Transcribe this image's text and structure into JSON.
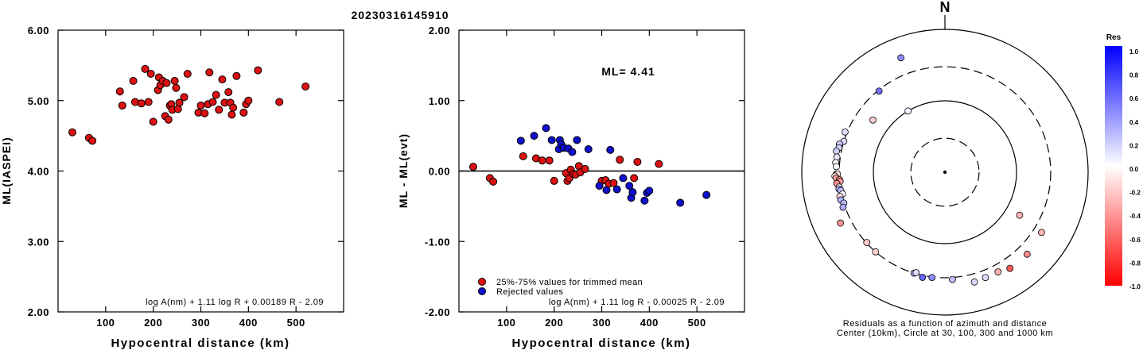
{
  "page_title": "20230316145910",
  "colors": {
    "accepted": "#dd1111",
    "rejected": "#1010cc",
    "marker_edge": "#000000"
  },
  "chart_data": [
    {
      "type": "scatter",
      "xlabel": "Hypocentral distance (km)",
      "ylabel": "ML(IASPEI)",
      "xlim": [
        0,
        600
      ],
      "ylim": [
        2.0,
        6.0
      ],
      "yticks": [
        "2.00",
        "3.00",
        "4.00",
        "5.00",
        "6.00"
      ],
      "xticks": [
        "100",
        "200",
        "300",
        "400",
        "500"
      ],
      "formula": "log A(nm) + 1.11 log R + 0.00189 R - 2.09",
      "series": [
        {
          "color": "#dd1111",
          "points": [
            [
              30,
              4.55
            ],
            [
              65,
              4.47
            ],
            [
              72,
              4.43
            ],
            [
              130,
              5.13
            ],
            [
              135,
              4.93
            ],
            [
              158,
              5.28
            ],
            [
              162,
              4.98
            ],
            [
              175,
              4.96
            ],
            [
              183,
              5.45
            ],
            [
              190,
              4.98
            ],
            [
              200,
              4.7
            ],
            [
              195,
              5.38
            ],
            [
              210,
              5.15
            ],
            [
              212,
              5.33
            ],
            [
              215,
              5.22
            ],
            [
              220,
              5.28
            ],
            [
              225,
              4.78
            ],
            [
              228,
              5.25
            ],
            [
              232,
              4.73
            ],
            [
              235,
              4.93
            ],
            [
              238,
              4.95
            ],
            [
              240,
              4.87
            ],
            [
              245,
              5.28
            ],
            [
              248,
              5.18
            ],
            [
              252,
              4.88
            ],
            [
              255,
              4.97
            ],
            [
              265,
              5.05
            ],
            [
              272,
              5.38
            ],
            [
              295,
              4.83
            ],
            [
              300,
              4.93
            ],
            [
              308,
              4.82
            ],
            [
              315,
              4.95
            ],
            [
              318,
              5.4
            ],
            [
              325,
              4.98
            ],
            [
              332,
              5.08
            ],
            [
              338,
              4.87
            ],
            [
              345,
              5.3
            ],
            [
              350,
              4.97
            ],
            [
              358,
              5.12
            ],
            [
              362,
              4.97
            ],
            [
              365,
              4.8
            ],
            [
              368,
              4.9
            ],
            [
              375,
              5.35
            ],
            [
              390,
              4.83
            ],
            [
              395,
              4.95
            ],
            [
              400,
              5.0
            ],
            [
              420,
              5.43
            ],
            [
              465,
              4.98
            ],
            [
              520,
              5.2
            ]
          ]
        }
      ]
    },
    {
      "type": "scatter",
      "xlabel": "Hypocentral distance (km)",
      "ylabel": "ML - ML(evt)",
      "xlim": [
        0,
        600
      ],
      "ylim": [
        -2.0,
        2.0
      ],
      "yticks": [
        "-2.00",
        "-1.00",
        "0.00",
        "1.00",
        "2.00"
      ],
      "xticks": [
        "100",
        "200",
        "300",
        "400",
        "500"
      ],
      "annotation": "ML= 4.41",
      "formula": "log A(nm) + 1.11 log R - 0.00025 R - 2.09",
      "legend": [
        "25%-75% values for trimmed mean",
        "Rejected values"
      ],
      "legend_position": "bottom-left",
      "series": [
        {
          "name": "25%-75% values for trimmed mean",
          "color": "#dd1111",
          "points": [
            [
              30,
              0.06
            ],
            [
              65,
              -0.1
            ],
            [
              72,
              -0.15
            ],
            [
              135,
              0.21
            ],
            [
              162,
              0.18
            ],
            [
              175,
              0.15
            ],
            [
              190,
              0.15
            ],
            [
              200,
              -0.14
            ],
            [
              225,
              -0.03
            ],
            [
              228,
              -0.14
            ],
            [
              232,
              -0.1
            ],
            [
              235,
              0.02
            ],
            [
              240,
              -0.04
            ],
            [
              245,
              -0.05
            ],
            [
              252,
              0.07
            ],
            [
              255,
              -0.02
            ],
            [
              265,
              0.03
            ],
            [
              300,
              -0.14
            ],
            [
              308,
              -0.13
            ],
            [
              315,
              -0.18
            ],
            [
              325,
              -0.17
            ],
            [
              338,
              0.16
            ],
            [
              368,
              -0.1
            ],
            [
              375,
              0.13
            ],
            [
              420,
              0.1
            ]
          ]
        },
        {
          "name": "Rejected values",
          "color": "#1010cc",
          "points": [
            [
              130,
              0.43
            ],
            [
              158,
              0.5
            ],
            [
              183,
              0.61
            ],
            [
              195,
              0.44
            ],
            [
              210,
              0.31
            ],
            [
              212,
              0.44
            ],
            [
              215,
              0.38
            ],
            [
              220,
              0.33
            ],
            [
              230,
              0.32
            ],
            [
              238,
              0.27
            ],
            [
              248,
              0.44
            ],
            [
              272,
              0.31
            ],
            [
              295,
              -0.21
            ],
            [
              310,
              -0.27
            ],
            [
              318,
              0.3
            ],
            [
              332,
              -0.26
            ],
            [
              345,
              -0.1
            ],
            [
              358,
              -0.21
            ],
            [
              362,
              -0.38
            ],
            [
              365,
              -0.3
            ],
            [
              390,
              -0.42
            ],
            [
              395,
              -0.31
            ],
            [
              400,
              -0.28
            ],
            [
              465,
              -0.45
            ],
            [
              520,
              -0.34
            ]
          ]
        }
      ]
    }
  ],
  "polar_plot": {
    "north_label": "N",
    "caption_line1": "Residuals as a function of azimuth and distance",
    "caption_line2": "Center (10km), Circle at 30, 100, 300 and 1000 km",
    "circles_km": [
      30,
      100,
      300,
      1000
    ],
    "circle_styles": [
      "dashed",
      "solid",
      "dashed",
      "solid"
    ],
    "points": [
      {
        "azimuth": 321,
        "distance_km": 290,
        "residual": 0.55
      },
      {
        "azimuth": 292,
        "distance_km": 320,
        "residual": 0.13
      },
      {
        "azimuth": 287,
        "distance_km": 300,
        "residual": 0.15
      },
      {
        "azimuth": 285,
        "distance_km": 335,
        "residual": 0.21
      },
      {
        "azimuth": 283,
        "distance_km": 330,
        "residual": 0.16
      },
      {
        "azimuth": 281,
        "distance_km": 350,
        "residual": 0.18
      },
      {
        "azimuth": 278,
        "distance_km": 335,
        "residual": 0.1
      },
      {
        "azimuth": 275,
        "distance_km": 340,
        "residual": 0.0
      },
      {
        "azimuth": 273,
        "distance_km": 330,
        "residual": 0.02
      },
      {
        "azimuth": 269,
        "distance_km": 330,
        "residual": 0.15
      },
      {
        "azimuth": 269,
        "distance_km": 318,
        "residual": -0.1
      },
      {
        "azimuth": 268,
        "distance_km": 345,
        "residual": -0.04
      },
      {
        "azimuth": 267,
        "distance_km": 333,
        "residual": -0.38
      },
      {
        "azimuth": 266,
        "distance_km": 300,
        "residual": -0.5
      },
      {
        "azimuth": 265,
        "distance_km": 295,
        "residual": -0.4
      },
      {
        "azimuth": 264,
        "distance_km": 330,
        "residual": -0.45
      },
      {
        "azimuth": 262,
        "distance_km": 310,
        "residual": -0.05
      },
      {
        "azimuth": 261,
        "distance_km": 315,
        "residual": 0.3
      },
      {
        "azimuth": 260,
        "distance_km": 300,
        "residual": 0.25
      },
      {
        "azimuth": 258,
        "distance_km": 290,
        "residual": 0.02
      },
      {
        "azimuth": 257,
        "distance_km": 320,
        "residual": -0.14
      },
      {
        "azimuth": 255,
        "distance_km": 320,
        "residual": 0.3
      },
      {
        "azimuth": 253,
        "distance_km": 300,
        "residual": 0.28
      },
      {
        "azimuth": 251,
        "distance_km": 320,
        "residual": 0.32
      },
      {
        "azimuth": 244,
        "distance_km": 420,
        "residual": -0.42
      },
      {
        "azimuth": 228,
        "distance_km": 295,
        "residual": -0.21
      },
      {
        "azimuth": 221,
        "distance_km": 300,
        "residual": -0.18
      },
      {
        "azimuth": 197,
        "distance_km": 300,
        "residual": 0.3
      },
      {
        "azimuth": 196,
        "distance_km": 290,
        "residual": 0.14
      },
      {
        "azimuth": 192,
        "distance_km": 320,
        "residual": 0.6
      },
      {
        "azimuth": 187,
        "distance_km": 305,
        "residual": 0.45
      },
      {
        "azimuth": 176,
        "distance_km": 320,
        "residual": 0.26
      },
      {
        "azimuth": 165,
        "distance_km": 390,
        "residual": 0.15
      },
      {
        "azimuth": 159,
        "distance_km": 380,
        "residual": 0.15
      },
      {
        "azimuth": 152,
        "distance_km": 380,
        "residual": -0.3
      },
      {
        "azimuth": 146,
        "distance_km": 420,
        "residual": -0.65
      },
      {
        "azimuth": 135,
        "distance_km": 420,
        "residual": -0.45
      },
      {
        "azimuth": 122,
        "distance_km": 390,
        "residual": -0.3
      },
      {
        "azimuth": 120,
        "distance_km": 160,
        "residual": -0.3
      },
      {
        "azimuth": 329,
        "distance_km": 100,
        "residual": 0.05
      },
      {
        "azimuth": 306,
        "distance_km": 175,
        "residual": -0.2
      },
      {
        "azimuth": 339,
        "distance_km": 520,
        "residual": 0.45
      }
    ]
  },
  "colorbar": {
    "title": "Res",
    "labels": [
      "1.0",
      "0.8",
      "0.6",
      "0.4",
      "0.2",
      "0.0",
      "-0.2",
      "-0.4",
      "-0.6",
      "-0.8",
      "-1.0"
    ]
  }
}
